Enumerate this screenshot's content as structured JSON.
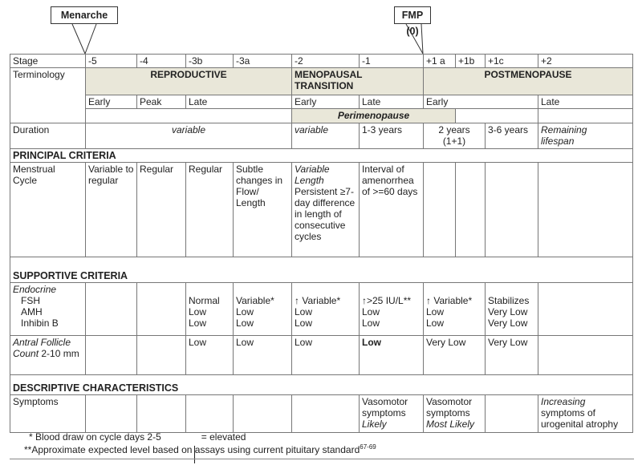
{
  "callouts": {
    "menarche": "Menarche",
    "fmp": "FMP (0)"
  },
  "stage": {
    "label": "Stage",
    "values": [
      "-5",
      "-4",
      "-3b",
      "-3a",
      "-2",
      "-1",
      "+1 a",
      "+1b",
      "+1c",
      "+2"
    ]
  },
  "terminology": {
    "label": "Terminology",
    "reproductive": "REPRODUCTIVE",
    "transition_1": "MENOPAUSAL",
    "transition_2": "TRANSITION",
    "postmenopause": "POSTMENOPAUSE",
    "sub": [
      "Early",
      "Peak",
      "Late",
      "Early",
      "Late",
      "Early",
      "Late"
    ],
    "perimenopause": "Perimenopause"
  },
  "duration": {
    "label": "Duration",
    "values": [
      "variable",
      "variable",
      "1-3 years",
      "2  years",
      "(1+1)",
      "3-6 years",
      "Remaining",
      "lifespan"
    ]
  },
  "principal": {
    "header": "PRINCIPAL CRITERIA",
    "label_1": "Menstrual",
    "label_2": "Cycle",
    "c1": "Variable to regular",
    "c2": "Regular",
    "c3": "Regular",
    "c4": "Subtle changes in Flow/ Length",
    "c5_italic": "Variable Length",
    "c5": "Persistent ≥7- day difference  in length of consecutive cycles",
    "c6": "Interval of amenorrhea of >=60 days"
  },
  "supportive": {
    "header": "SUPPORTIVE CRITERIA",
    "endocrine": "Endocrine",
    "fsh": "FSH",
    "amh": "AMH",
    "inhibin": "Inhibin B",
    "cols": [
      [
        "Normal",
        "Low",
        "Low"
      ],
      [
        "Variable*",
        "Low",
        "Low"
      ],
      [
        "Variable*",
        "Low",
        "Low"
      ],
      [
        ">25 IU/L**",
        "Low",
        "Low"
      ],
      [
        "Variable*",
        "Low",
        "Low"
      ],
      [
        "Stabilizes",
        "Very Low",
        "Very Low"
      ]
    ],
    "afc_italic_1": "Antral Follicle",
    "afc_italic_2": "Count",
    "afc_rest": " 2-10 mm",
    "afc": [
      "Low",
      "Low",
      "Low",
      "Low",
      "Very Low",
      "Very Low"
    ]
  },
  "descriptive": {
    "header": "DESCRIPTIVE CHARACTERISTICS",
    "label": "Symptoms",
    "m1_1": "Vasomotor symptoms",
    "m1_2": "Likely",
    "m2_1": "Vasomotor symptoms",
    "m2_2": "Most Likely",
    "late_italic": "Increasing",
    "late": "symptoms of urogenital atrophy"
  },
  "footnotes": {
    "f1": "*  Blood draw on cycle days 2-5",
    "f1b": "= elevated",
    "f2": "**Approximate expected level based on assays using current pituitary standard",
    "f2_sup": "67-69"
  },
  "colors": {
    "shade": "#e9e7d9",
    "border": "#777777"
  },
  "icons": {
    "elevated": "up-arrow-icon"
  }
}
